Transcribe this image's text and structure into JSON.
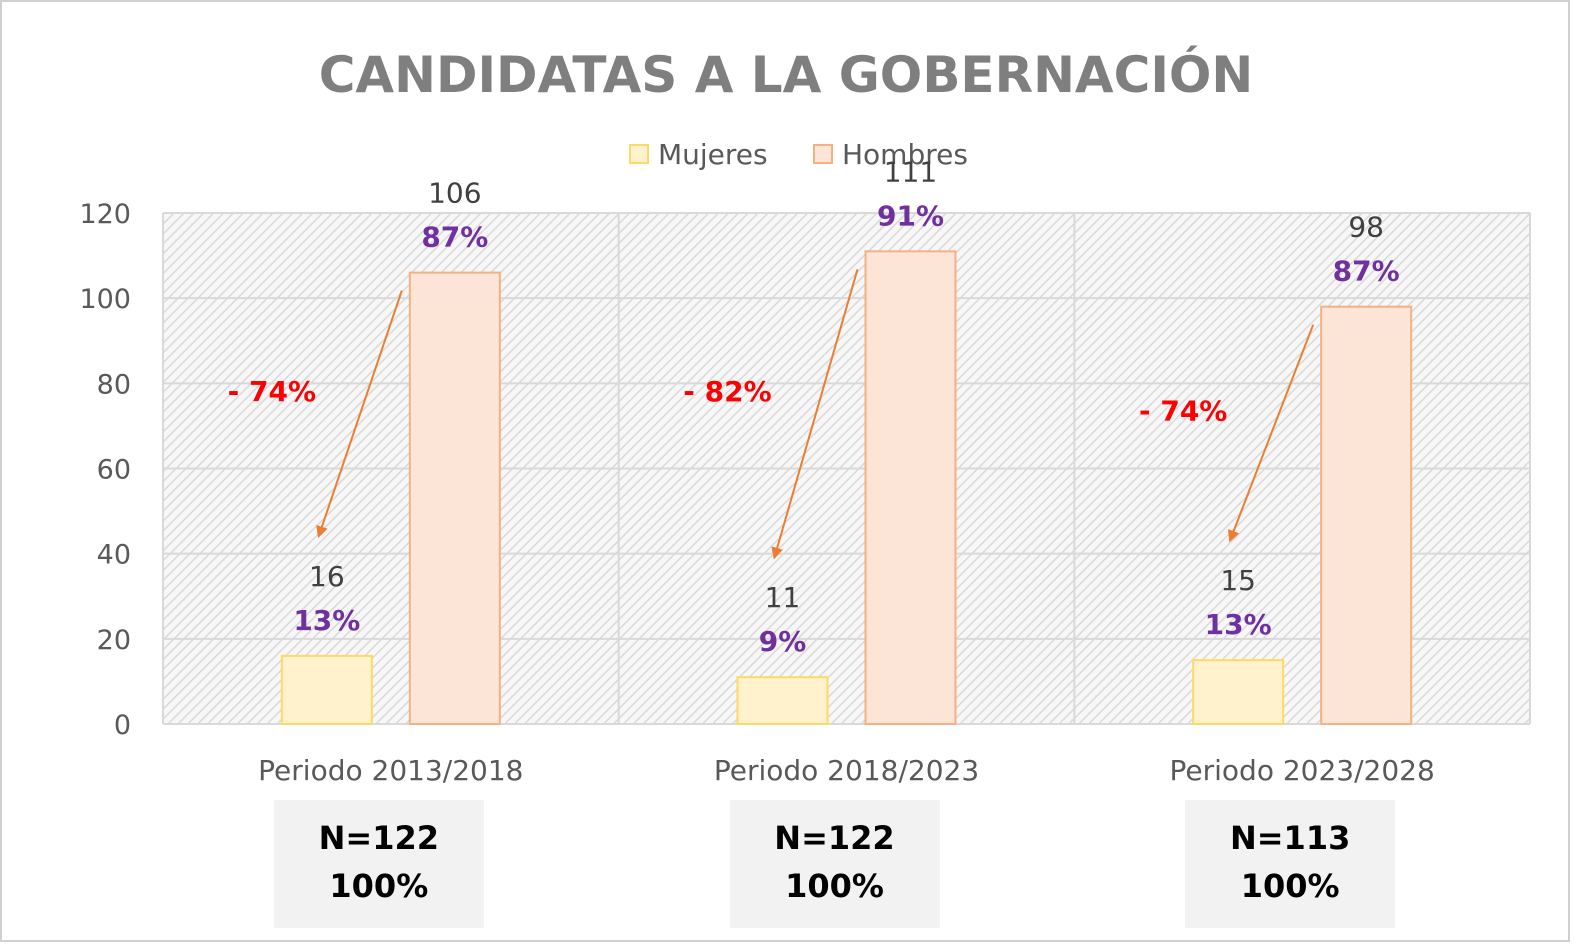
{
  "chart_data": {
    "type": "bar",
    "title": "CANDIDATAS A LA GOBERNACIÓN",
    "categories": [
      "Periodo 2013/2018",
      "Periodo 2018/2023",
      "Periodo 2023/2028"
    ],
    "series": [
      {
        "name": "Mujeres",
        "values": [
          16,
          11,
          15
        ],
        "percent_labels": [
          "13%",
          "9%",
          "13%"
        ],
        "color": "#fff2cc",
        "stroke": "#ffd966"
      },
      {
        "name": "Hombres",
        "values": [
          106,
          111,
          98
        ],
        "percent_labels": [
          "87%",
          "91%",
          "87%"
        ],
        "color": "#fce4d6",
        "stroke": "#f4b183"
      }
    ],
    "ylim": [
      0,
      120
    ],
    "yticks": [
      0,
      20,
      40,
      60,
      80,
      100,
      120
    ],
    "grid": true,
    "legend": "top-center",
    "annotations": {
      "gap_labels": [
        "- 74%",
        "- 82%",
        "- 74%"
      ],
      "arrow_color": "#ed7d31",
      "gap_label_color": "#ff0000",
      "percent_label_color": "#7030a0"
    }
  },
  "totals": [
    {
      "n": "N=122",
      "pct": "100%"
    },
    {
      "n": "N=122",
      "pct": "100%"
    },
    {
      "n": "N=113",
      "pct": "100%"
    }
  ]
}
